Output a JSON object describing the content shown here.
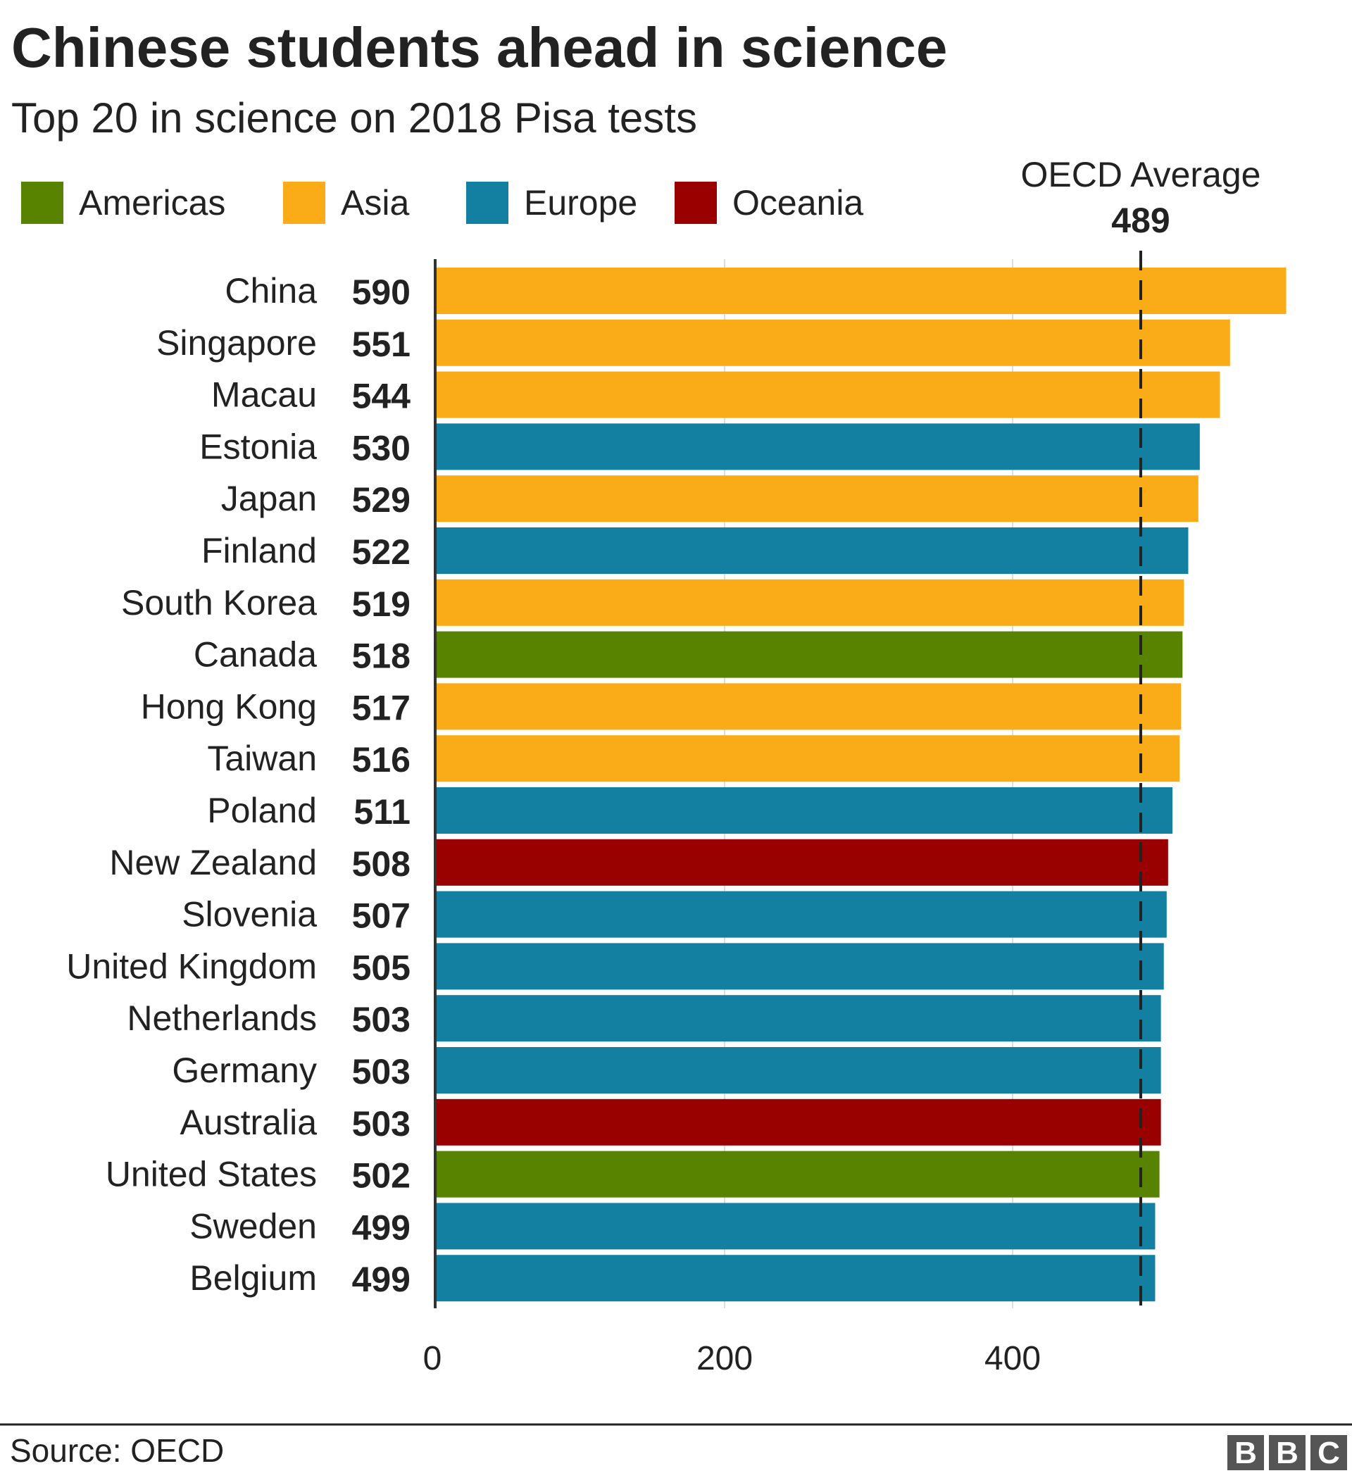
{
  "chart_data": {
    "type": "bar",
    "orientation": "horizontal",
    "title": "Chinese students ahead in science",
    "subtitle": "Top 20 in science on 2018 Pisa tests",
    "categories": [
      "China",
      "Singapore",
      "Macau",
      "Estonia",
      "Japan",
      "Finland",
      "South Korea",
      "Canada",
      "Hong Kong",
      "Taiwan",
      "Poland",
      "New Zealand",
      "Slovenia",
      "United Kingdom",
      "Netherlands",
      "Germany",
      "Australia",
      "United States",
      "Sweden",
      "Belgium"
    ],
    "values": [
      590,
      551,
      544,
      530,
      529,
      522,
      519,
      518,
      517,
      516,
      511,
      508,
      507,
      505,
      503,
      503,
      503,
      502,
      499,
      499
    ],
    "regions": [
      "Asia",
      "Asia",
      "Asia",
      "Europe",
      "Asia",
      "Europe",
      "Asia",
      "Americas",
      "Asia",
      "Asia",
      "Europe",
      "Oceania",
      "Europe",
      "Europe",
      "Europe",
      "Europe",
      "Oceania",
      "Americas",
      "Europe",
      "Europe"
    ],
    "legend": [
      {
        "name": "Americas",
        "color": "#588300"
      },
      {
        "name": "Asia",
        "color": "#FAAB18"
      },
      {
        "name": "Europe",
        "color": "#1380A1"
      },
      {
        "name": "Oceania",
        "color": "#990000"
      }
    ],
    "legend_position": "top",
    "reference_line": {
      "label": "OECD Average",
      "value": 489,
      "value_label": "489",
      "style": "dashed"
    },
    "xlim": [
      0,
      600
    ],
    "x_ticks": [
      0,
      200,
      400
    ],
    "x_tick_labels": [
      "0",
      "200",
      "400"
    ],
    "grid": true
  },
  "footer": {
    "source": "Source: OECD",
    "logo": "BBC"
  }
}
